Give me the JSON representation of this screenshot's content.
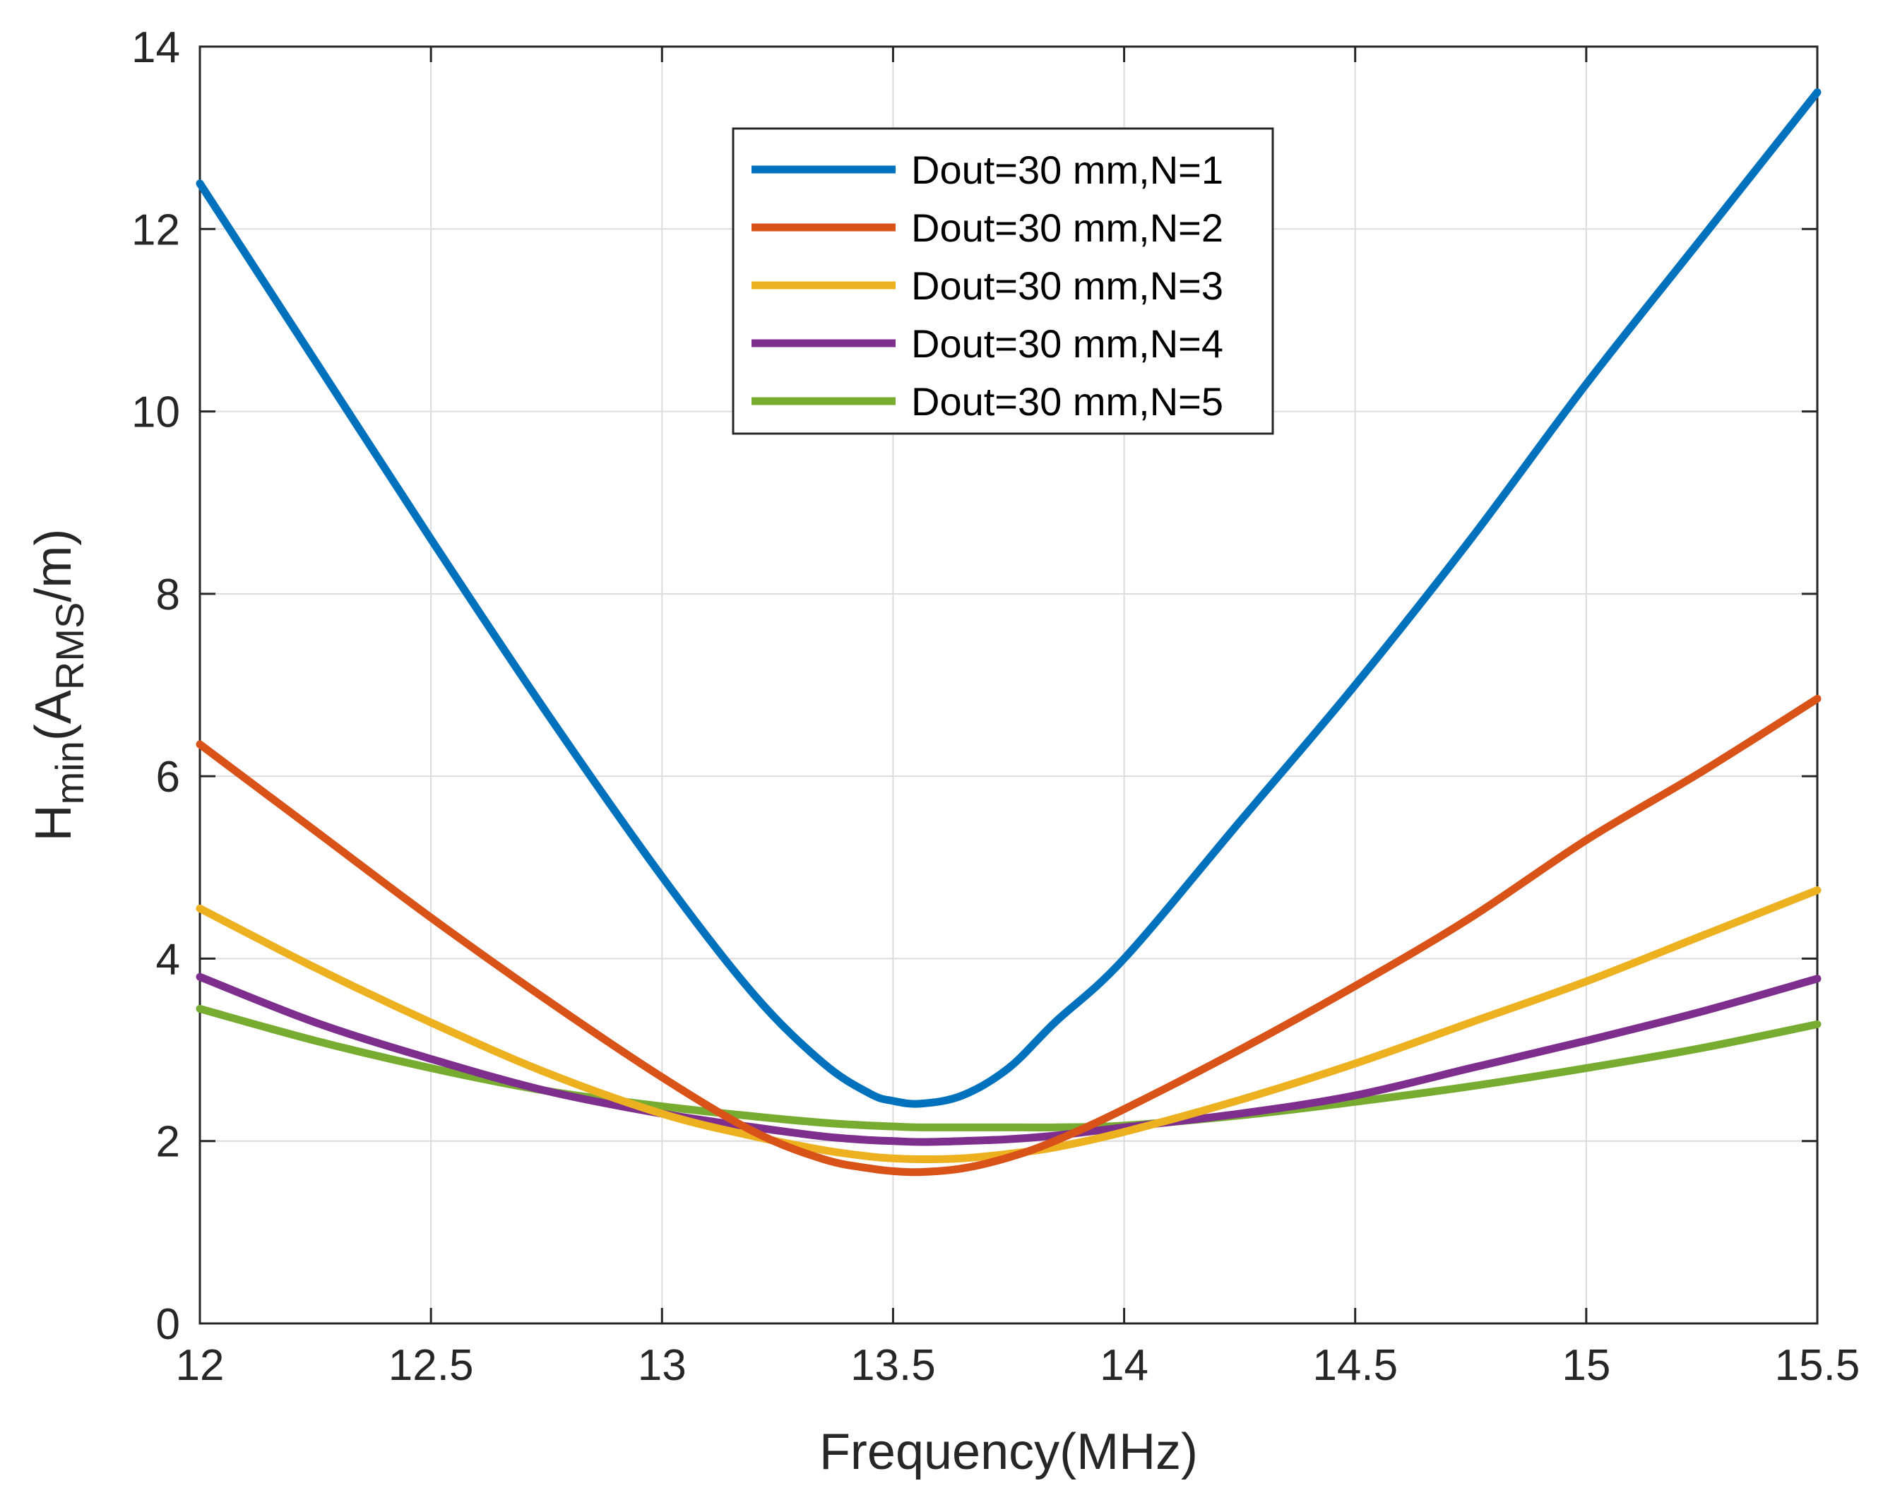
{
  "chart_data": {
    "type": "line",
    "title": "",
    "xlabel": "Frequency(MHz)",
    "ylabel": {
      "base": "H",
      "sub1": "min",
      "mid": "(A",
      "sub2": "RMS",
      "end": "/m)"
    },
    "xlim": [
      12,
      15.5
    ],
    "ylim": [
      0,
      14
    ],
    "xticks": [
      12,
      12.5,
      13,
      13.5,
      14,
      14.5,
      15,
      15.5
    ],
    "yticks": [
      0,
      2,
      4,
      6,
      8,
      10,
      12,
      14
    ],
    "grid": true,
    "legend_position": "top-center",
    "x": [
      12.0,
      12.25,
      12.5,
      12.75,
      13.0,
      13.2,
      13.35,
      13.45,
      13.5,
      13.56,
      13.65,
      13.75,
      13.85,
      14.0,
      14.25,
      14.5,
      14.75,
      15.0,
      15.25,
      15.5
    ],
    "series": [
      {
        "name": "Dout=30 mm,N=1",
        "color": "#0072BD",
        "values": [
          12.5,
          10.55,
          8.6,
          6.7,
          4.9,
          3.6,
          2.85,
          2.52,
          2.44,
          2.41,
          2.5,
          2.8,
          3.3,
          4.0,
          5.5,
          7.0,
          8.6,
          10.3,
          11.9,
          13.5
        ]
      },
      {
        "name": "Dout=30 mm,N=2",
        "color": "#D95319",
        "values": [
          6.35,
          5.4,
          4.45,
          3.55,
          2.7,
          2.1,
          1.8,
          1.7,
          1.67,
          1.66,
          1.7,
          1.82,
          2.0,
          2.35,
          3.0,
          3.7,
          4.45,
          5.3,
          6.05,
          6.85
        ]
      },
      {
        "name": "Dout=30 mm,N=3",
        "color": "#EDB120",
        "values": [
          4.55,
          3.9,
          3.3,
          2.75,
          2.3,
          2.05,
          1.9,
          1.83,
          1.81,
          1.8,
          1.81,
          1.86,
          1.93,
          2.1,
          2.45,
          2.85,
          3.3,
          3.75,
          4.25,
          4.75
        ]
      },
      {
        "name": "Dout=30 mm,N=4",
        "color": "#7E2F8E",
        "values": [
          3.8,
          3.3,
          2.9,
          2.55,
          2.3,
          2.15,
          2.05,
          2.01,
          2.0,
          1.99,
          2.0,
          2.02,
          2.06,
          2.15,
          2.3,
          2.5,
          2.8,
          3.1,
          3.42,
          3.78
        ]
      },
      {
        "name": "Dout=30 mm,N=5",
        "color": "#77AC30",
        "values": [
          3.45,
          3.1,
          2.8,
          2.55,
          2.38,
          2.27,
          2.2,
          2.17,
          2.16,
          2.15,
          2.15,
          2.15,
          2.15,
          2.17,
          2.28,
          2.43,
          2.6,
          2.8,
          3.02,
          3.28
        ]
      }
    ]
  }
}
